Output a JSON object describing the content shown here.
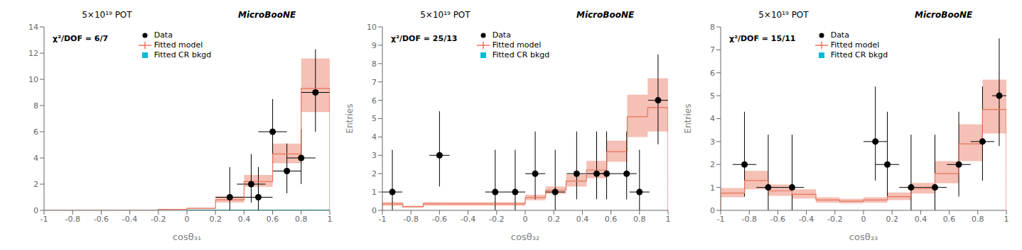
{
  "chart_data": [
    {
      "type": "histogram",
      "xlabel": "cosθ₃₁",
      "annotations": [
        "5×10¹⁹ POT",
        "MicroBooNE",
        "χ²/DOF = 6/7"
      ],
      "xlim": [
        -1,
        1
      ],
      "xticks": [
        -1,
        -0.8,
        -0.6,
        -0.4,
        -0.2,
        0,
        0.2,
        0.4,
        0.6,
        0.8,
        1
      ],
      "ylim": [
        0,
        14
      ],
      "yticks": [
        0,
        2,
        4,
        6,
        8,
        10,
        12,
        14
      ],
      "grid": false,
      "legend": "upper center",
      "series": [
        {
          "name": "Data",
          "type": "scatter",
          "color": "black",
          "marker": "circle",
          "x": [
            0.3,
            0.45,
            0.5,
            0.6,
            0.7,
            0.8,
            0.9
          ],
          "values": [
            1.0,
            2.0,
            1.0,
            6.0,
            3.0,
            4.0,
            9.0
          ],
          "yerr_lo": [
            1.0,
            1.4,
            1.0,
            2.4,
            1.7,
            2.0,
            3.0
          ],
          "yerr_hi": [
            2.3,
            2.3,
            2.3,
            2.5,
            2.1,
            2.2,
            3.3
          ],
          "xerr": [
            0.1,
            0.1,
            0.1,
            0.1,
            0.1,
            0.1,
            0.1
          ]
        },
        {
          "name": "Fitted model",
          "type": "step",
          "color": "#E8735A",
          "bins": [
            -1.0,
            -0.8,
            -0.6,
            -0.4,
            -0.2,
            0.0,
            0.2,
            0.4,
            0.6,
            0.8,
            1.0
          ],
          "values": [
            0.0,
            0.0,
            0.0,
            0.0,
            0.07,
            0.15,
            0.8,
            2.2,
            4.3,
            9.3
          ],
          "err_lo": [
            0.0,
            0.0,
            0.0,
            0.0,
            0.03,
            0.06,
            0.2,
            0.4,
            0.7,
            1.8
          ],
          "err_hi": [
            0.0,
            0.0,
            0.0,
            0.0,
            0.03,
            0.06,
            0.25,
            0.5,
            0.8,
            2.3
          ]
        },
        {
          "name": "Fitted CR bkgd",
          "type": "bar",
          "color": "#00BCD4",
          "marker": "square",
          "bins": [
            -1.0,
            -0.8,
            -0.6,
            -0.4,
            -0.2,
            0.0,
            0.2,
            0.4,
            0.6,
            0.8,
            1.0
          ],
          "values": [
            0.0,
            0.0,
            0.0,
            0.0,
            0.0,
            0.05,
            0.05,
            0.05,
            0.05,
            0.05
          ]
        }
      ]
    },
    {
      "type": "histogram",
      "xlabel": "cosθ₃₂",
      "ylabel": "Entries",
      "annotations": [
        "5×10¹⁹ POT",
        "MicroBooNE",
        "χ²/DOF = 25/13"
      ],
      "xlim": [
        -1,
        1
      ],
      "xticks": [
        -1,
        -0.8,
        -0.6,
        -0.4,
        -0.2,
        0,
        0.2,
        0.4,
        0.6,
        0.8,
        1
      ],
      "ylim": [
        0,
        10
      ],
      "yticks": [
        0,
        1,
        2,
        3,
        4,
        5,
        6,
        7,
        8,
        9,
        10
      ],
      "grid": false,
      "legend": "upper center",
      "series": [
        {
          "name": "Data",
          "type": "scatter",
          "color": "black",
          "marker": "circle",
          "x": [
            -0.93,
            -0.6,
            -0.21,
            -0.07,
            0.07,
            0.21,
            0.36,
            0.5,
            0.57,
            0.71,
            0.8,
            0.93
          ],
          "values": [
            1.0,
            3.0,
            1.0,
            1.0,
            2.0,
            1.0,
            2.0,
            2.0,
            2.0,
            2.0,
            1.0,
            6.0
          ],
          "yerr_lo": [
            1.0,
            1.7,
            1.0,
            1.0,
            1.4,
            1.0,
            1.4,
            1.4,
            1.4,
            1.4,
            1.0,
            2.4
          ],
          "yerr_hi": [
            2.3,
            2.4,
            2.3,
            2.3,
            2.3,
            2.3,
            2.3,
            2.3,
            2.3,
            2.3,
            2.3,
            2.5
          ],
          "xerr": [
            0.07,
            0.07,
            0.07,
            0.07,
            0.07,
            0.07,
            0.07,
            0.07,
            0.07,
            0.07,
            0.07,
            0.07
          ]
        },
        {
          "name": "Fitted model",
          "type": "step",
          "color": "#E8735A",
          "bins": [
            -1.0,
            -0.857,
            -0.714,
            -0.571,
            -0.429,
            -0.286,
            -0.143,
            0.0,
            0.143,
            0.286,
            0.429,
            0.571,
            0.714,
            0.857,
            1.0
          ],
          "values": [
            0.35,
            0.2,
            0.35,
            0.35,
            0.35,
            0.35,
            0.35,
            0.7,
            1.1,
            1.6,
            2.2,
            3.2,
            5.1,
            5.6
          ],
          "err_lo": [
            0.1,
            0.05,
            0.1,
            0.1,
            0.1,
            0.1,
            0.1,
            0.15,
            0.2,
            0.3,
            0.45,
            0.55,
            1.1,
            1.3
          ],
          "err_hi": [
            0.1,
            0.05,
            0.1,
            0.1,
            0.1,
            0.1,
            0.1,
            0.15,
            0.2,
            0.35,
            0.5,
            0.6,
            1.2,
            1.6
          ]
        },
        {
          "name": "Fitted CR bkgd",
          "type": "bar",
          "color": "#00BCD4",
          "marker": "square",
          "bins": [
            -1.0,
            -0.857,
            -0.714,
            -0.571,
            -0.429,
            -0.286,
            -0.143,
            0.0,
            0.143,
            0.286,
            0.429,
            0.571,
            0.714,
            0.857,
            1.0
          ],
          "values": [
            0.0,
            0.0,
            0.0,
            0.0,
            0.0,
            0.0,
            0.0,
            0.0,
            0.0,
            0.0,
            0.0,
            0.0,
            0.0,
            0.0
          ]
        }
      ]
    },
    {
      "type": "histogram",
      "xlabel": "cosθ₃₃",
      "ylabel": "Entries",
      "annotations": [
        "5×10¹⁹ POT",
        "MicroBooNE",
        "χ²/DOF = 15/11"
      ],
      "xlim": [
        -1,
        1
      ],
      "xticks": [
        -1,
        -0.8,
        -0.6,
        -0.4,
        -0.2,
        0,
        0.2,
        0.4,
        0.6,
        0.8,
        1
      ],
      "ylim": [
        0,
        8
      ],
      "yticks": [
        0,
        1,
        2,
        3,
        4,
        5,
        6,
        7,
        8
      ],
      "grid": false,
      "legend": "upper center",
      "series": [
        {
          "name": "Data",
          "type": "scatter",
          "color": "black",
          "marker": "circle",
          "x": [
            -0.833,
            -0.667,
            -0.5,
            0.083,
            0.167,
            0.333,
            0.5,
            0.667,
            0.833,
            0.95
          ],
          "values": [
            2.0,
            1.0,
            1.0,
            3.0,
            2.0,
            1.0,
            1.0,
            2.0,
            3.0,
            5.0
          ],
          "yerr_lo": [
            1.4,
            1.0,
            1.0,
            1.7,
            1.4,
            1.0,
            1.0,
            1.4,
            1.7,
            2.2
          ],
          "yerr_hi": [
            2.3,
            2.3,
            2.3,
            2.4,
            2.3,
            2.3,
            2.3,
            2.3,
            2.4,
            2.5
          ],
          "xerr": [
            0.083,
            0.083,
            0.083,
            0.083,
            0.083,
            0.083,
            0.083,
            0.083,
            0.083,
            0.05
          ]
        },
        {
          "name": "Fitted model",
          "type": "step",
          "color": "#E8735A",
          "bins": [
            -1.0,
            -0.833,
            -0.667,
            -0.5,
            -0.333,
            -0.167,
            0.0,
            0.167,
            0.333,
            0.5,
            0.667,
            0.833,
            1.0
          ],
          "values": [
            0.75,
            1.3,
            0.85,
            0.7,
            0.45,
            0.4,
            0.45,
            0.6,
            0.95,
            1.6,
            2.9,
            4.4
          ],
          "err_lo": [
            0.18,
            0.38,
            0.22,
            0.18,
            0.12,
            0.1,
            0.12,
            0.15,
            0.22,
            0.42,
            0.75,
            1.05
          ],
          "err_hi": [
            0.22,
            0.42,
            0.28,
            0.22,
            0.12,
            0.1,
            0.12,
            0.18,
            0.25,
            0.55,
            0.85,
            1.3
          ]
        },
        {
          "name": "Fitted CR bkgd",
          "type": "bar",
          "color": "#00BCD4",
          "marker": "square",
          "bins": [
            -1.0,
            -0.833,
            -0.667,
            -0.5,
            -0.333,
            -0.167,
            0.0,
            0.167,
            0.333,
            0.5,
            0.667,
            0.833,
            1.0
          ],
          "values": [
            0.0,
            0.0,
            0.0,
            0.0,
            0.0,
            0.0,
            0.0,
            0.0,
            0.0,
            0.0,
            0.0,
            0.0
          ]
        }
      ]
    }
  ]
}
